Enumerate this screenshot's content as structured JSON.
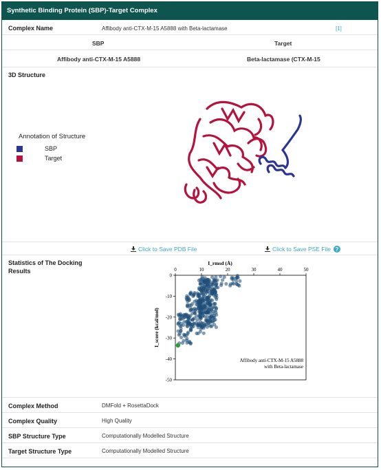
{
  "header": {
    "title": "Synthetic Binding Protein (SBP)-Target Complex"
  },
  "complex_name": {
    "label": "Complex Name",
    "value": "Affibody anti-CTX-M-15 A5888 with Beta-lactamase",
    "ref": "[1]"
  },
  "columns": {
    "sbp_header": "SBP",
    "target_header": "Target",
    "sbp_link": "Affibody anti-CTX-M-15 A5888",
    "target_link": "Beta-lactamase (CTX-M-15"
  },
  "structure": {
    "label": "3D Structure",
    "annotation_title": "Annotation of Structure",
    "legend": [
      {
        "name": "SBP",
        "color": "#2b3592"
      },
      {
        "name": "Target",
        "color": "#b5123e"
      }
    ],
    "save_pdb": "Click to Save PDB File",
    "save_pse": "Click to Save PSE File"
  },
  "docking": {
    "label_line1": "Statistics of The Docking",
    "label_line2": "Results"
  },
  "chart_data": {
    "type": "scatter",
    "xlabel": "I_rmsd (Å)",
    "ylabel": "I_score (kcal/mol)",
    "xlim": [
      0,
      50
    ],
    "ylim": [
      -50,
      0
    ],
    "xticks": [
      0,
      10,
      20,
      30,
      40,
      50
    ],
    "yticks": [
      0,
      -10,
      -20,
      -30,
      -40,
      -50
    ],
    "annotation_line1": "Affibody anti-CTX-M-15 A5888",
    "annotation_line2": "with Beta-lactamase",
    "point_color": "#1f4e79",
    "highlight_color": "#2ca02c",
    "highlight_point": {
      "x": 1.0,
      "y": -33.5
    },
    "clusters": [
      {
        "x": [
          9,
          16
        ],
        "y": [
          -25,
          -2
        ],
        "n": 260
      },
      {
        "x": [
          4,
          11
        ],
        "y": [
          -28,
          -8
        ],
        "n": 120
      },
      {
        "x": [
          1,
          6
        ],
        "y": [
          -33,
          -18
        ],
        "n": 60
      },
      {
        "x": [
          10,
          25
        ],
        "y": [
          -6,
          0
        ],
        "n": 40
      }
    ]
  },
  "details": [
    {
      "label": "Complex Method",
      "value": "DMFold + RosettaDock"
    },
    {
      "label": "Complex Quality",
      "value": "High Quality"
    },
    {
      "label": "SBP Structure Type",
      "value": "Computationally Modelled Structure"
    },
    {
      "label": "Target Structure Type",
      "value": "Computationally Modelled Structure"
    }
  ]
}
